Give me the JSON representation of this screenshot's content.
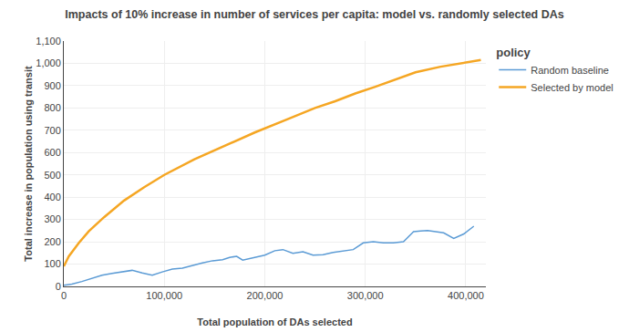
{
  "chart_data": {
    "type": "line",
    "title": "Impacts of 10% increase in number of services per capita: model vs. randomly selected DAs",
    "xlabel": "Total population of DAs selected",
    "ylabel": "Total increase in population using transit",
    "legend_title": "policy",
    "legend": "right",
    "grid": true,
    "xlim": [
      0,
      420000
    ],
    "ylim": [
      0,
      1100
    ],
    "xticks": [
      0,
      {
        "value": 100000,
        "label": "100,000"
      },
      {
        "value": 200000,
        "label": "200,000"
      },
      {
        "value": 300000,
        "label": "300,000"
      },
      {
        "value": 400000,
        "label": "400,000"
      }
    ],
    "yticks": [
      0,
      100,
      200,
      300,
      400,
      500,
      600,
      700,
      800,
      900,
      {
        "value": 1000,
        "label": "1,000"
      },
      {
        "value": 1100,
        "label": "1,100"
      }
    ],
    "series": [
      {
        "name": "Random baseline",
        "color": "#5b9bd5",
        "x": [
          0,
          8000,
          18000,
          28000,
          38000,
          48000,
          58000,
          68000,
          78000,
          88000,
          98000,
          108000,
          118000,
          128000,
          138000,
          148000,
          158000,
          165000,
          172000,
          178000,
          185000,
          192000,
          200000,
          210000,
          218000,
          228000,
          238000,
          248000,
          258000,
          268000,
          278000,
          288000,
          298000,
          308000,
          318000,
          328000,
          338000,
          348000,
          355000,
          362000,
          370000,
          378000,
          388000,
          398000,
          408000
        ],
        "values": [
          5,
          10,
          22,
          35,
          50,
          58,
          65,
          72,
          60,
          50,
          65,
          78,
          82,
          95,
          105,
          115,
          120,
          130,
          135,
          118,
          125,
          135,
          140,
          160,
          165,
          148,
          155,
          140,
          142,
          152,
          160,
          165,
          195,
          200,
          195,
          195,
          200,
          245,
          248,
          250,
          245,
          240,
          215,
          235,
          270
        ]
      },
      {
        "name": "Selected by model",
        "color": "#f5a623",
        "x": [
          0,
          5000,
          15000,
          25000,
          40000,
          60000,
          80000,
          100000,
          130000,
          160000,
          190000,
          220000,
          250000,
          270000,
          290000,
          310000,
          330000,
          350000,
          375000,
          400000,
          415000
        ],
        "values": [
          90,
          135,
          195,
          248,
          310,
          385,
          445,
          500,
          570,
          630,
          690,
          745,
          800,
          830,
          865,
          895,
          928,
          960,
          985,
          1005,
          1015
        ]
      }
    ]
  }
}
